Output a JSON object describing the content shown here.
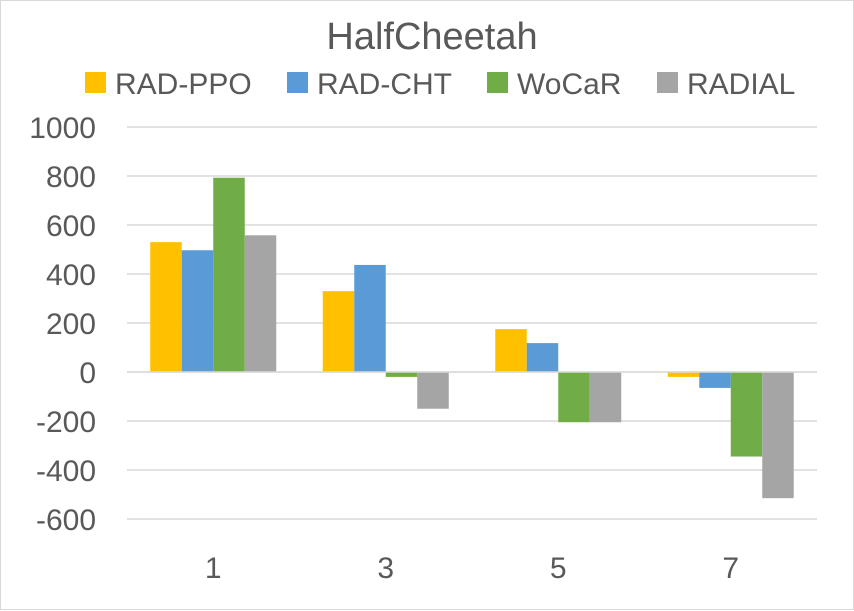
{
  "chart_data": {
    "type": "bar",
    "title": "HalfCheetah",
    "xlabel": "",
    "ylabel": "",
    "categories": [
      "1",
      "3",
      "5",
      "7"
    ],
    "ylim": [
      -600,
      1000
    ],
    "yticks": [
      "1000",
      "800",
      "600",
      "400",
      "200",
      "0",
      "-200",
      "-400",
      "-600"
    ],
    "ytick_values": [
      1000,
      800,
      600,
      400,
      200,
      0,
      -200,
      -400,
      -600
    ],
    "grid": true,
    "legend_position": "top",
    "series": [
      {
        "name": "RAD-PPO",
        "color": "#ffc000",
        "values": [
          530,
          330,
          175,
          -20
        ]
      },
      {
        "name": "RAD-CHT",
        "color": "#5b9bd5",
        "values": [
          497,
          437,
          118,
          -65
        ]
      },
      {
        "name": "WoCaR",
        "color": "#70ad47",
        "values": [
          793,
          -20,
          -205,
          -345
        ]
      },
      {
        "name": "RADIAL",
        "color": "#a5a5a5",
        "values": [
          558,
          -150,
          -205,
          -515
        ]
      }
    ]
  }
}
